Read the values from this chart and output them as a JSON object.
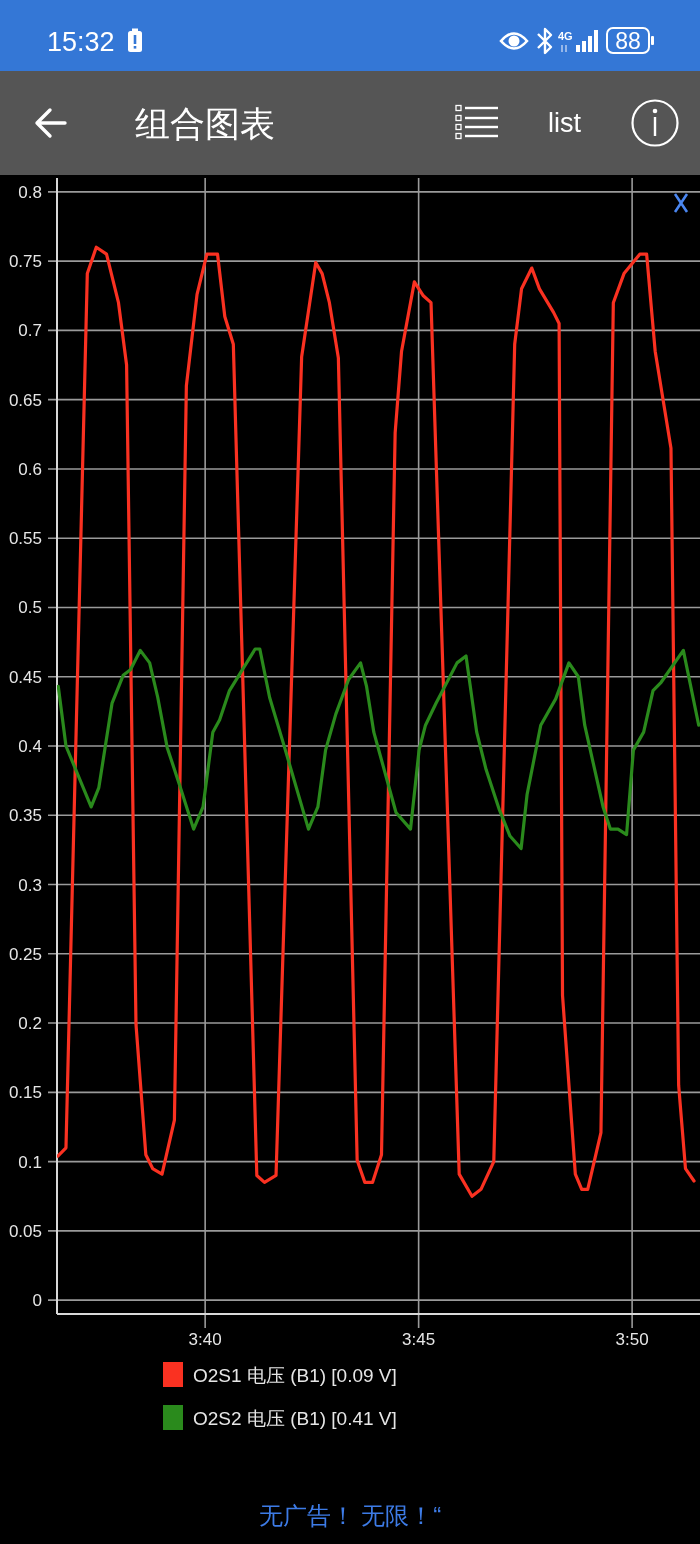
{
  "chart_data": {
    "type": "line",
    "title": "组合图表",
    "xlim": [
      216.53,
      231.59
    ],
    "xticks": [
      {
        "value": 220,
        "label": "3:40"
      },
      {
        "value": 225,
        "label": "3:45"
      },
      {
        "value": 230,
        "label": "3:50"
      }
    ],
    "ylim": [
      -0.01,
      0.81
    ],
    "yticks": [
      0,
      0.05,
      0.1,
      0.15,
      0.2,
      0.25,
      0.3,
      0.35,
      0.4,
      0.45,
      0.5,
      0.55,
      0.6,
      0.65,
      0.7,
      0.75,
      0.8
    ],
    "grid": true,
    "legend": "bottom",
    "series": [
      {
        "name": "O2S1 电压 (B1) [0.09 V]",
        "color": "#fa3121",
        "x": [
          216.55,
          216.74,
          217.24,
          217.45,
          217.69,
          217.97,
          218.16,
          218.38,
          218.61,
          218.77,
          218.99,
          219.28,
          219.56,
          219.81,
          220.04,
          220.29,
          220.46,
          220.66,
          221.21,
          221.39,
          221.66,
          222.26,
          222.59,
          222.74,
          222.91,
          223.12,
          223.56,
          223.74,
          223.92,
          224.13,
          224.45,
          224.6,
          224.9,
          225.11,
          225.29,
          225.95,
          226.25,
          226.46,
          226.76,
          227.25,
          227.41,
          227.65,
          227.83,
          228.16,
          228.29,
          228.37,
          228.67,
          228.82,
          228.96,
          229.27,
          229.56,
          229.81,
          230.18,
          230.34,
          230.54,
          230.91,
          231.09,
          231.25,
          231.45
        ],
        "values": [
          0.104,
          0.11,
          0.741,
          0.76,
          0.755,
          0.72,
          0.675,
          0.199,
          0.105,
          0.095,
          0.091,
          0.13,
          0.66,
          0.726,
          0.755,
          0.755,
          0.71,
          0.69,
          0.09,
          0.085,
          0.09,
          0.681,
          0.749,
          0.741,
          0.72,
          0.68,
          0.101,
          0.085,
          0.085,
          0.105,
          0.626,
          0.685,
          0.735,
          0.725,
          0.72,
          0.091,
          0.075,
          0.08,
          0.1,
          0.69,
          0.73,
          0.745,
          0.73,
          0.713,
          0.705,
          0.22,
          0.091,
          0.08,
          0.08,
          0.121,
          0.72,
          0.741,
          0.755,
          0.755,
          0.685,
          0.615,
          0.155,
          0.095,
          0.086
        ]
      },
      {
        "name": "O2S2 电压 (B1) [0.41 V]",
        "color": "#2a8a1c",
        "x": [
          216.56,
          216.74,
          217.33,
          217.51,
          217.82,
          218.08,
          218.25,
          218.48,
          218.7,
          218.89,
          219.11,
          219.41,
          219.73,
          219.95,
          220.18,
          220.34,
          220.57,
          220.83,
          221.17,
          221.28,
          221.51,
          221.86,
          222.42,
          222.64,
          222.82,
          223.06,
          223.36,
          223.64,
          223.78,
          223.95,
          224.47,
          224.81,
          225.01,
          225.16,
          225.41,
          225.9,
          226.11,
          226.36,
          226.58,
          226.89,
          227.14,
          227.4,
          227.54,
          227.86,
          228.21,
          228.52,
          228.74,
          228.89,
          229.32,
          229.49,
          229.67,
          229.87,
          230.03,
          230.27,
          230.49,
          230.68,
          231.2,
          231.56
        ],
        "values": [
          0.443,
          0.4,
          0.356,
          0.37,
          0.431,
          0.451,
          0.455,
          0.469,
          0.46,
          0.435,
          0.399,
          0.371,
          0.34,
          0.356,
          0.41,
          0.419,
          0.44,
          0.453,
          0.47,
          0.47,
          0.435,
          0.399,
          0.34,
          0.356,
          0.397,
          0.423,
          0.448,
          0.46,
          0.443,
          0.41,
          0.352,
          0.34,
          0.397,
          0.415,
          0.431,
          0.46,
          0.465,
          0.41,
          0.383,
          0.354,
          0.335,
          0.326,
          0.365,
          0.415,
          0.434,
          0.46,
          0.45,
          0.415,
          0.356,
          0.34,
          0.34,
          0.336,
          0.397,
          0.41,
          0.44,
          0.446,
          0.469,
          0.415
        ]
      }
    ],
    "annotations": [
      "15:32",
      "4G",
      "88",
      "list",
      "无广告！ 无限！“"
    ]
  }
}
